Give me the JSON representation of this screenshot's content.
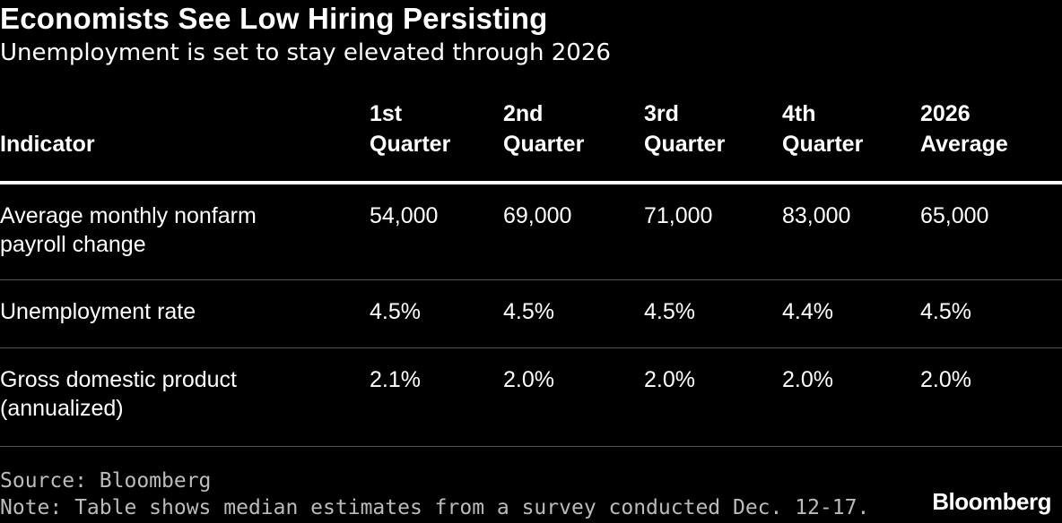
{
  "chart_data": {
    "type": "table",
    "title": "Economists See Low Hiring Persisting",
    "subtitle": "Unemployment is set to stay elevated through 2026",
    "columns": [
      "Indicator",
      "1st\nQuarter",
      "2nd\nQuarter",
      "3rd\nQuarter",
      "4th\nQuarter",
      "2026\nAverage"
    ],
    "rows": [
      [
        "Average monthly nonfarm payroll change",
        "54,000",
        "69,000",
        "71,000",
        "83,000",
        "65,000"
      ],
      [
        "Unemployment rate",
        "4.5%",
        "4.5%",
        "4.5%",
        "4.4%",
        "4.5%"
      ],
      [
        "Gross domestic product (annualized)",
        "2.1%",
        "2.0%",
        "2.0%",
        "2.0%",
        "2.0%"
      ]
    ],
    "source": "Source: Bloomberg",
    "note": "Note: Table shows median estimates from a survey conducted Dec. 12-17."
  },
  "brand": "Bloomberg",
  "colors": {
    "background": "#000000",
    "text": "#ffffff",
    "muted": "#bbbbbb",
    "rule": "#555555"
  }
}
